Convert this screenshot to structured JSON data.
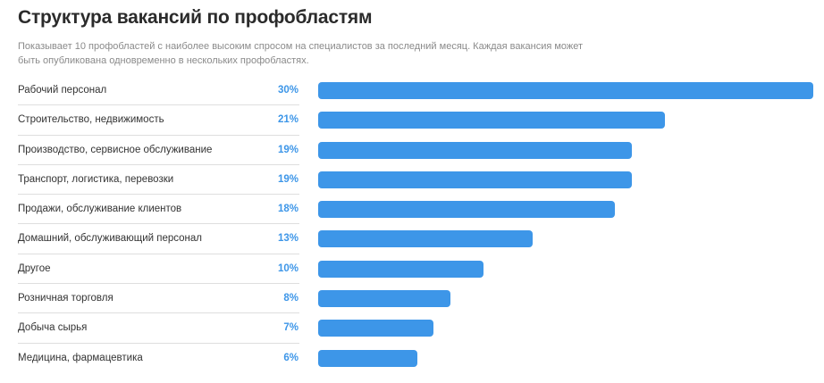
{
  "header": {
    "title": "Структура вакансий по профобластям",
    "subtitle": "Показывает 10 профобластей с наиболее высоким спросом на специалистов за последний месяц. Каждая вакансия может быть опубликована одновременно в нескольких профобластях."
  },
  "colors": {
    "bar": "#3d96e8",
    "percent": "#3d96e8"
  },
  "chart_data": {
    "type": "bar",
    "orientation": "horizontal",
    "categories": [
      "Рабочий персонал",
      "Строительство, недвижимость",
      "Производство, сервисное обслуживание",
      "Транспорт, логистика, перевозки",
      "Продажи, обслуживание клиентов",
      "Домашний, обслуживающий персонал",
      "Другое",
      "Розничная торговля",
      "Добыча сырья",
      "Медицина, фармацевтика"
    ],
    "values": [
      30,
      21,
      19,
      19,
      18,
      13,
      10,
      8,
      7,
      6
    ],
    "value_labels": [
      "30%",
      "21%",
      "19%",
      "19%",
      "18%",
      "13%",
      "10%",
      "8%",
      "7%",
      "6%"
    ],
    "unit": "%",
    "xlim": [
      0,
      30
    ]
  }
}
